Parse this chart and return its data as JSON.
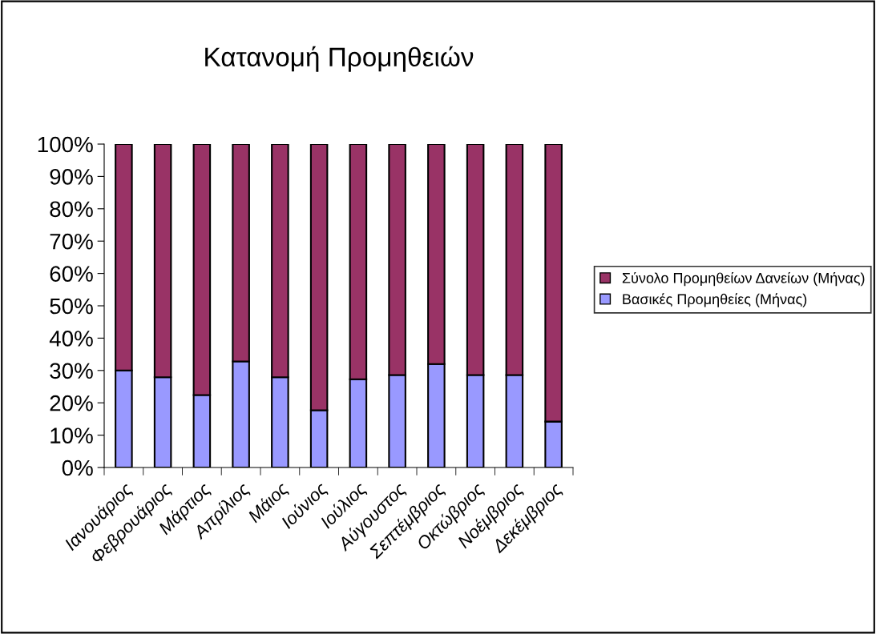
{
  "chart_data": {
    "type": "bar",
    "title": "Κατανομή Προμηθειών",
    "stacked": true,
    "categories": [
      "Ιανουάριος",
      "Φεβρουάριος",
      "Μάρτιος",
      "Απρίλιος",
      "Μάιος",
      "Ιούνιος",
      "Ιούλιος",
      "Αύγουστος",
      "Σεπτέμβριος",
      "Οκτώβριος",
      "Νοέμβριος",
      "Δεκέμβριος"
    ],
    "series": [
      {
        "name": "Βασικές Προμηθείες (Μήνας)",
        "color": "#9999ff",
        "values": [
          30.0,
          27.9,
          22.4,
          32.8,
          27.9,
          17.7,
          27.3,
          28.6,
          32.0,
          28.6,
          28.6,
          14.2
        ]
      },
      {
        "name": "Σύνολο Προμηθείων Δανείων (Μήνας)",
        "color": "#993366",
        "values": [
          70.0,
          72.1,
          77.6,
          67.2,
          72.1,
          82.3,
          72.7,
          71.4,
          68.0,
          71.4,
          71.4,
          85.8
        ]
      }
    ],
    "ylim": [
      0,
      100
    ],
    "yticks": [
      {
        "value": 0,
        "label": "0%"
      },
      {
        "value": 10,
        "label": "10%"
      },
      {
        "value": 20,
        "label": "20%"
      },
      {
        "value": 30,
        "label": "30%"
      },
      {
        "value": 40,
        "label": "40%"
      },
      {
        "value": 50,
        "label": "50%"
      },
      {
        "value": 60,
        "label": "60%"
      },
      {
        "value": 70,
        "label": "70%"
      },
      {
        "value": 80,
        "label": "80%"
      },
      {
        "value": 90,
        "label": "90%"
      },
      {
        "value": 100,
        "label": "100%"
      }
    ],
    "grid": false,
    "legend": "right"
  }
}
